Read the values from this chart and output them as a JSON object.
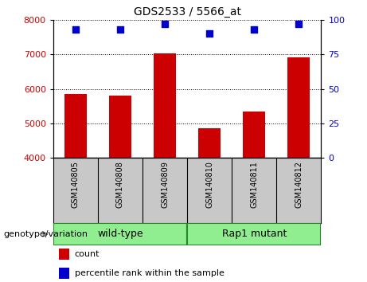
{
  "title": "GDS2533 / 5566_at",
  "samples": [
    "GSM140805",
    "GSM140808",
    "GSM140809",
    "GSM140810",
    "GSM140811",
    "GSM140812"
  ],
  "counts": [
    5850,
    5800,
    7020,
    4870,
    5350,
    6900
  ],
  "percentiles": [
    93,
    93,
    97,
    90,
    93,
    97
  ],
  "ylim_left": [
    4000,
    8000
  ],
  "ylim_right": [
    0,
    100
  ],
  "yticks_left": [
    4000,
    5000,
    6000,
    7000,
    8000
  ],
  "yticks_right": [
    0,
    25,
    50,
    75,
    100
  ],
  "bar_color": "#cc0000",
  "dot_color": "#0000cc",
  "groups_def": [
    {
      "label": "wild-type",
      "start": 0,
      "end": 2
    },
    {
      "label": "Rap1 mutant",
      "start": 3,
      "end": 5
    }
  ],
  "green_light": "#90ee90",
  "green_dark": "#228b22",
  "legend_count_label": "count",
  "legend_percentile_label": "percentile rank within the sample",
  "genotype_label": "genotype/variation",
  "background_color": "#ffffff",
  "label_area_bg": "#c8c8c8"
}
